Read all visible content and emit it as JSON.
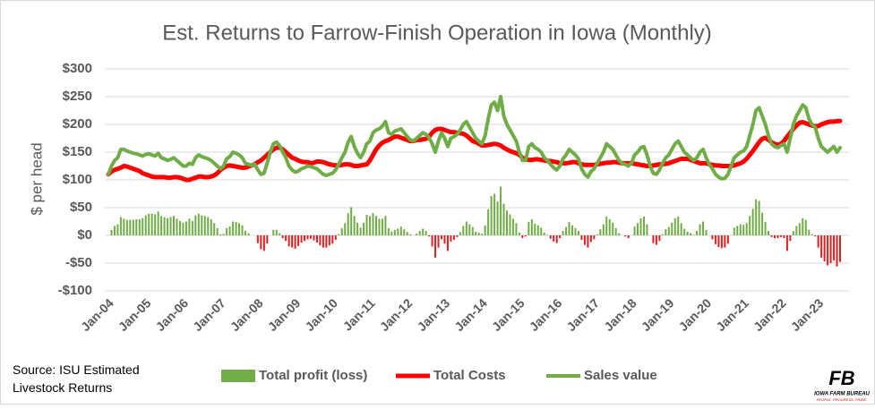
{
  "chart_data": {
    "type": "combo",
    "title": "Est. Returns to Farrow-Finish Operation in Iowa (Monthly)",
    "y_label": "$ per head",
    "source": "Source: ISU Estimated Livestock Returns",
    "logo": {
      "mark": "FB",
      "name": "IOWA FARM BUREAU",
      "tagline": "PEOPLE. PROGRESS. PRIDE."
    },
    "ylim": [
      -100,
      300
    ],
    "yticks": [
      {
        "value": -100,
        "label": "-$100"
      },
      {
        "value": -50,
        "label": "-$50"
      },
      {
        "value": 0,
        "label": "$0"
      },
      {
        "value": 50,
        "label": "$50"
      },
      {
        "value": 100,
        "label": "$100"
      },
      {
        "value": 150,
        "label": "$150"
      },
      {
        "value": 200,
        "label": "$200"
      },
      {
        "value": 250,
        "label": "$250"
      },
      {
        "value": 300,
        "label": "$300"
      }
    ],
    "grid": true,
    "legend": "bottom",
    "categories": [
      "Jan-04",
      null,
      null,
      null,
      null,
      null,
      null,
      null,
      null,
      null,
      null,
      null,
      "Jan-05",
      null,
      null,
      null,
      null,
      null,
      null,
      null,
      null,
      null,
      null,
      null,
      "Jan-06",
      null,
      null,
      null,
      null,
      null,
      null,
      null,
      null,
      null,
      null,
      null,
      "Jan-07",
      null,
      null,
      null,
      null,
      null,
      null,
      null,
      null,
      null,
      null,
      null,
      "Jan-08",
      null,
      null,
      null,
      null,
      null,
      null,
      null,
      null,
      null,
      null,
      null,
      "Jan-09",
      null,
      null,
      null,
      null,
      null,
      null,
      null,
      null,
      null,
      null,
      null,
      "Jan-10",
      null,
      null,
      null,
      null,
      null,
      null,
      null,
      null,
      null,
      null,
      null,
      "Jan-11",
      null,
      null,
      null,
      null,
      null,
      null,
      null,
      null,
      null,
      null,
      null,
      "Jan-12",
      null,
      null,
      null,
      null,
      null,
      null,
      null,
      null,
      null,
      null,
      null,
      "Jan-13",
      null,
      null,
      null,
      null,
      null,
      null,
      null,
      null,
      null,
      null,
      null,
      "Jan-14",
      null,
      null,
      null,
      null,
      null,
      null,
      null,
      null,
      null,
      null,
      null,
      "Jan-15",
      null,
      null,
      null,
      null,
      null,
      null,
      null,
      null,
      null,
      null,
      null,
      "Jan-16",
      null,
      null,
      null,
      null,
      null,
      null,
      null,
      null,
      null,
      null,
      null,
      "Jan-17",
      null,
      null,
      null,
      null,
      null,
      null,
      null,
      null,
      null,
      null,
      null,
      "Jan-18",
      null,
      null,
      null,
      null,
      null,
      null,
      null,
      null,
      null,
      null,
      null,
      "Jan-19",
      null,
      null,
      null,
      null,
      null,
      null,
      null,
      null,
      null,
      null,
      null,
      "Jan-20",
      null,
      null,
      null,
      null,
      null,
      null,
      null,
      null,
      null,
      null,
      null,
      "Jan-21",
      null,
      null,
      null,
      null,
      null,
      null,
      null,
      null,
      null,
      null,
      null,
      "Jan-22",
      null,
      null,
      null,
      null,
      null,
      null,
      null,
      null,
      null,
      null,
      null,
      "Jan-23",
      null,
      null,
      null,
      null,
      null,
      null,
      null
    ],
    "series": [
      {
        "name": "Total profit (loss)",
        "type": "bar",
        "color": "#70ad47",
        "negative_color": "#e02020",
        "values": [
          0,
          10,
          17,
          20,
          33,
          30,
          28,
          28,
          28,
          29,
          29,
          31,
          36,
          39,
          39,
          38,
          43,
          35,
          33,
          31,
          33,
          35,
          30,
          26,
          23,
          25,
          30,
          26,
          36,
          39,
          36,
          35,
          33,
          29,
          22,
          13,
          2,
          3,
          13,
          16,
          25,
          24,
          22,
          18,
          8,
          4,
          0,
          0,
          -14,
          -25,
          -28,
          -15,
          0,
          10,
          10,
          4,
          -5,
          -10,
          -20,
          -22,
          -24,
          -19,
          -13,
          -10,
          -7,
          -6,
          -9,
          -13,
          -18,
          -22,
          -22,
          -18,
          -15,
          -8,
          2,
          13,
          22,
          40,
          51,
          35,
          23,
          14,
          23,
          37,
          35,
          40,
          35,
          30,
          30,
          35,
          13,
          7,
          10,
          12,
          16,
          11,
          6,
          2,
          0,
          3,
          8,
          12,
          8,
          -2,
          -20,
          -40,
          -22,
          -7,
          -15,
          -28,
          -11,
          -8,
          -3,
          6,
          17,
          25,
          20,
          15,
          7,
          5,
          3,
          18,
          47,
          71,
          75,
          61,
          88,
          57,
          45,
          38,
          30,
          22,
          5,
          -5,
          -2,
          24,
          29,
          21,
          18,
          14,
          5,
          1,
          -6,
          -11,
          -14,
          -5,
          8,
          15,
          24,
          18,
          13,
          8,
          -8,
          -17,
          -22,
          -12,
          -7,
          2,
          11,
          20,
          34,
          29,
          23,
          13,
          4,
          0,
          -2,
          -5,
          0,
          16,
          22,
          31,
          34,
          20,
          0,
          -14,
          -17,
          -10,
          2,
          11,
          15,
          23,
          31,
          34,
          22,
          12,
          7,
          4,
          1,
          8,
          20,
          25,
          10,
          0,
          -7,
          -16,
          -21,
          -23,
          -22,
          -15,
          0,
          14,
          17,
          20,
          19,
          22,
          35,
          48,
          65,
          62,
          41,
          24,
          8,
          -3,
          -5,
          -5,
          -3,
          -5,
          -28,
          -10,
          8,
          17,
          22,
          31,
          28,
          10,
          2,
          -2,
          -22,
          -40,
          -47,
          -54,
          -50,
          -45,
          -56,
          -48
        ]
      },
      {
        "name": "Total Costs",
        "type": "line",
        "color": "#ff0000",
        "width": 5,
        "values": [
          110,
          115,
          118,
          120,
          122,
          125,
          124,
          122,
          120,
          118,
          116,
          112,
          110,
          108,
          106,
          105,
          105,
          105,
          105,
          104,
          104,
          105,
          105,
          104,
          102,
          100,
          100,
          102,
          104,
          106,
          106,
          105,
          105,
          106,
          108,
          112,
          118,
          122,
          125,
          126,
          125,
          124,
          123,
          122,
          122,
          124,
          126,
          128,
          132,
          135,
          140,
          145,
          150,
          155,
          158,
          158,
          155,
          150,
          145,
          140,
          138,
          135,
          133,
          132,
          132,
          130,
          131,
          133,
          133,
          132,
          130,
          128,
          127,
          126,
          126,
          127,
          128,
          128,
          127,
          125,
          125,
          126,
          127,
          128,
          135,
          145,
          155,
          162,
          167,
          170,
          172,
          175,
          178,
          178,
          176,
          174,
          172,
          170,
          170,
          172,
          172,
          173,
          174,
          178,
          185,
          190,
          192,
          192,
          190,
          188,
          186,
          186,
          185,
          184,
          183,
          180,
          175,
          170,
          168,
          165,
          162,
          162,
          163,
          164,
          165,
          164,
          162,
          158,
          155,
          152,
          150,
          148,
          145,
          140,
          137,
          136,
          136,
          137,
          137,
          136,
          135,
          134,
          134,
          133,
          132,
          130,
          130,
          130,
          131,
          132,
          132,
          130,
          128,
          127,
          127,
          127,
          127,
          128,
          129,
          130,
          131,
          131,
          132,
          132,
          131,
          130,
          130,
          130,
          130,
          129,
          128,
          127,
          126,
          125,
          125,
          126,
          127,
          128,
          128,
          129,
          130,
          132,
          134,
          136,
          138,
          138,
          138,
          136,
          134,
          132,
          130,
          130,
          130,
          128,
          127,
          126,
          126,
          125,
          125,
          125,
          125,
          126,
          128,
          130,
          133,
          138,
          145,
          152,
          160,
          168,
          174,
          176,
          172,
          168,
          165,
          163,
          165,
          170,
          178,
          185,
          192,
          198,
          203,
          204,
          202,
          200,
          198,
          197,
          197,
          200,
          202,
          204,
          205,
          205,
          206,
          206
        ]
      },
      {
        "name": "Sales value",
        "type": "line",
        "color": "#70ad47",
        "width": 4,
        "values": [
          110,
          125,
          135,
          140,
          155,
          155,
          152,
          150,
          148,
          147,
          145,
          143,
          146,
          147,
          145,
          143,
          148,
          140,
          138,
          135,
          137,
          140,
          135,
          130,
          125,
          125,
          130,
          128,
          140,
          145,
          142,
          140,
          138,
          135,
          130,
          125,
          120,
          125,
          138,
          142,
          150,
          148,
          145,
          140,
          130,
          128,
          126,
          128,
          118,
          110,
          112,
          130,
          150,
          165,
          168,
          162,
          150,
          140,
          125,
          118,
          114,
          116,
          120,
          122,
          125,
          124,
          122,
          120,
          115,
          110,
          108,
          110,
          112,
          118,
          128,
          140,
          150,
          168,
          178,
          160,
          148,
          140,
          150,
          165,
          170,
          185,
          190,
          192,
          197,
          205,
          185,
          182,
          188,
          190,
          192,
          185,
          178,
          172,
          170,
          175,
          180,
          185,
          182,
          176,
          165,
          150,
          170,
          185,
          175,
          160,
          175,
          178,
          182,
          190,
          200,
          205,
          195,
          185,
          175,
          170,
          165,
          180,
          210,
          235,
          240,
          225,
          250,
          215,
          200,
          190,
          180,
          170,
          150,
          135,
          135,
          160,
          165,
          158,
          155,
          150,
          140,
          135,
          128,
          122,
          118,
          125,
          138,
          145,
          155,
          150,
          145,
          138,
          120,
          110,
          105,
          115,
          120,
          130,
          140,
          150,
          165,
          160,
          155,
          145,
          135,
          130,
          128,
          125,
          130,
          145,
          150,
          158,
          160,
          145,
          125,
          112,
          110,
          118,
          130,
          140,
          145,
          155,
          165,
          170,
          160,
          150,
          145,
          140,
          135,
          140,
          150,
          155,
          140,
          128,
          120,
          110,
          105,
          102,
          103,
          110,
          125,
          140,
          145,
          150,
          152,
          160,
          180,
          200,
          225,
          230,
          215,
          200,
          180,
          165,
          160,
          158,
          162,
          165,
          150,
          175,
          200,
          215,
          225,
          235,
          230,
          210,
          200,
          195,
          175,
          160,
          155,
          150,
          155,
          160,
          150,
          158
        ]
      }
    ]
  }
}
